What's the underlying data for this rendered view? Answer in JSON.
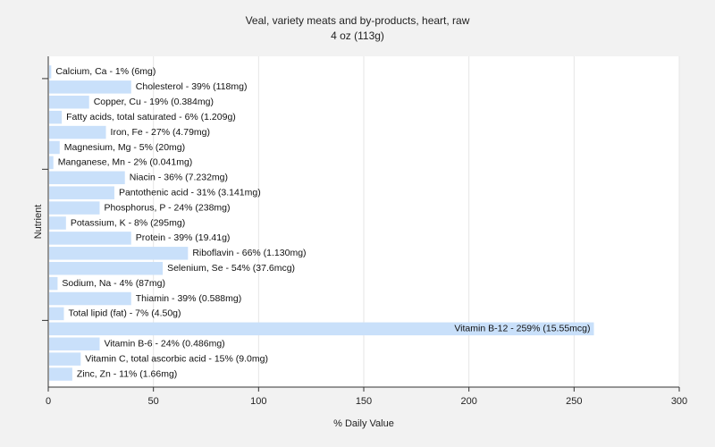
{
  "chart_data": {
    "type": "bar",
    "orientation": "horizontal",
    "title": "Veal, variety meats and by-products, heart, raw",
    "subtitle": "4 oz (113g)",
    "xlabel": "% Daily Value",
    "ylabel": "Nutrient",
    "xlim": [
      0,
      300
    ],
    "xticks": [
      0,
      50,
      100,
      150,
      200,
      250,
      300
    ],
    "grid": true,
    "bar_color": "#c9e0fa",
    "categories": [
      "Calcium, Ca",
      "Cholesterol",
      "Copper, Cu",
      "Fatty acids, total saturated",
      "Iron, Fe",
      "Magnesium, Mg",
      "Manganese, Mn",
      "Niacin",
      "Pantothenic acid",
      "Phosphorus, P",
      "Potassium, K",
      "Protein",
      "Riboflavin",
      "Selenium, Se",
      "Sodium, Na",
      "Thiamin",
      "Total lipid (fat)",
      "Vitamin B-12",
      "Vitamin B-6",
      "Vitamin C, total ascorbic acid",
      "Zinc, Zn"
    ],
    "values": [
      1,
      39,
      19,
      6,
      27,
      5,
      2,
      36,
      31,
      24,
      8,
      39,
      66,
      54,
      4,
      39,
      7,
      259,
      24,
      15,
      11
    ],
    "labels": [
      "Calcium, Ca - 1% (6mg)",
      "Cholesterol - 39% (118mg)",
      "Copper, Cu - 19% (0.384mg)",
      "Fatty acids, total saturated - 6% (1.209g)",
      "Iron, Fe - 27% (4.79mg)",
      "Magnesium, Mg - 5% (20mg)",
      "Manganese, Mn - 2% (0.041mg)",
      "Niacin - 36% (7.232mg)",
      "Pantothenic acid - 31% (3.141mg)",
      "Phosphorus, P - 24% (238mg)",
      "Potassium, K - 8% (295mg)",
      "Protein - 39% (19.41g)",
      "Riboflavin - 66% (1.130mg)",
      "Selenium, Se - 54% (37.6mcg)",
      "Sodium, Na - 4% (87mg)",
      "Thiamin - 39% (0.588mg)",
      "Total lipid (fat) - 7% (4.50g)",
      "Vitamin B-12 - 259% (15.55mcg)",
      "Vitamin B-6 - 24% (0.486mg)",
      "Vitamin C, total ascorbic acid - 15% (9.0mg)",
      "Zinc, Zn - 11% (1.66mg)"
    ]
  }
}
